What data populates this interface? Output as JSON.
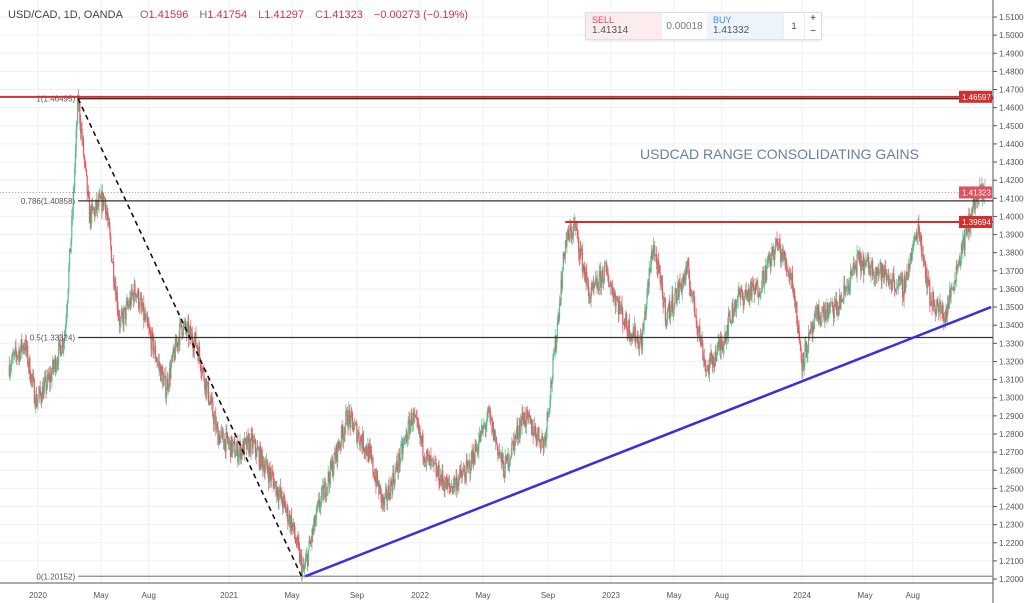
{
  "header": {
    "title": "USD/CAD, 1D, OANDA",
    "o_label": "O",
    "o": "1.41596",
    "h_label": "H",
    "h": "1.41754",
    "l_label": "L",
    "l": "1.41297",
    "c_label": "C",
    "c": "1.41323",
    "change": "−0.00273 (−0.19%)"
  },
  "trade": {
    "sell_label": "SELL",
    "sell_price": "1.41314",
    "spread": "0.00018",
    "buy_label": "BUY",
    "buy_price": "1.41332",
    "qty": "1",
    "plus": "+",
    "minus": "−"
  },
  "annotation": "USDCAD RANGE CONSOLIDATING GAINS",
  "colors": {
    "up": "#53b987",
    "down": "#eb4d5c",
    "resistance": "#d32f2f",
    "trendline": "#3b2ee0",
    "fib": "#555555"
  },
  "chart_data": {
    "type": "candlestick",
    "title": "USD/CAD, 1D, OANDA",
    "ylim": [
      1.195,
      1.512
    ],
    "y_ticks": [
      "1.20000",
      "1.21000",
      "1.22000",
      "1.23000",
      "1.24000",
      "1.25000",
      "1.26000",
      "1.27000",
      "1.28000",
      "1.29000",
      "1.30000",
      "1.31000",
      "1.32000",
      "1.33000",
      "1.34000",
      "1.35000",
      "1.36000",
      "1.37000",
      "1.38000",
      "1.39000",
      "1.40000",
      "1.41000",
      "1.42000",
      "1.43000",
      "1.44000",
      "1.45000",
      "1.46000",
      "1.47000",
      "1.48000",
      "1.49000",
      "1.50000",
      "1.51000"
    ],
    "x_ticks": [
      "2020",
      "May",
      "Aug",
      "2021",
      "May",
      "Sep",
      "2022",
      "May",
      "Sep",
      "2023",
      "May",
      "Aug",
      "2024",
      "May",
      "Aug"
    ],
    "x_tick_dates": [
      2020.0,
      2020.33,
      2020.58,
      2021.0,
      2021.33,
      2021.67,
      2022.0,
      2022.33,
      2022.67,
      2023.0,
      2023.33,
      2023.58,
      2024.0,
      2024.33,
      2024.58
    ],
    "price_path": [
      [
        2019.85,
        1.318
      ],
      [
        2019.93,
        1.33
      ],
      [
        2019.99,
        1.298
      ],
      [
        2020.06,
        1.31
      ],
      [
        2020.14,
        1.335
      ],
      [
        2020.18,
        1.4
      ],
      [
        2020.21,
        1.465
      ],
      [
        2020.27,
        1.4
      ],
      [
        2020.35,
        1.41
      ],
      [
        2020.43,
        1.34
      ],
      [
        2020.51,
        1.36
      ],
      [
        2020.67,
        1.305
      ],
      [
        2020.75,
        1.34
      ],
      [
        2020.83,
        1.33
      ],
      [
        2020.94,
        1.28
      ],
      [
        2021.04,
        1.27
      ],
      [
        2021.12,
        1.275
      ],
      [
        2021.23,
        1.255
      ],
      [
        2021.33,
        1.23
      ],
      [
        2021.39,
        1.203
      ],
      [
        2021.47,
        1.24
      ],
      [
        2021.55,
        1.265
      ],
      [
        2021.62,
        1.29
      ],
      [
        2021.73,
        1.27
      ],
      [
        2021.81,
        1.24
      ],
      [
        2021.89,
        1.265
      ],
      [
        2021.96,
        1.29
      ],
      [
        2022.04,
        1.265
      ],
      [
        2022.15,
        1.25
      ],
      [
        2022.25,
        1.26
      ],
      [
        2022.36,
        1.29
      ],
      [
        2022.44,
        1.26
      ],
      [
        2022.54,
        1.29
      ],
      [
        2022.65,
        1.275
      ],
      [
        2022.7,
        1.32
      ],
      [
        2022.76,
        1.385
      ],
      [
        2022.81,
        1.395
      ],
      [
        2022.89,
        1.355
      ],
      [
        2022.97,
        1.37
      ],
      [
        2023.08,
        1.34
      ],
      [
        2023.16,
        1.33
      ],
      [
        2023.22,
        1.385
      ],
      [
        2023.29,
        1.345
      ],
      [
        2023.4,
        1.37
      ],
      [
        2023.5,
        1.315
      ],
      [
        2023.58,
        1.33
      ],
      [
        2023.66,
        1.355
      ],
      [
        2023.77,
        1.36
      ],
      [
        2023.87,
        1.385
      ],
      [
        2023.95,
        1.365
      ],
      [
        2024.0,
        1.32
      ],
      [
        2024.08,
        1.345
      ],
      [
        2024.19,
        1.35
      ],
      [
        2024.29,
        1.375
      ],
      [
        2024.4,
        1.37
      ],
      [
        2024.53,
        1.36
      ],
      [
        2024.61,
        1.395
      ],
      [
        2024.67,
        1.355
      ],
      [
        2024.75,
        1.345
      ],
      [
        2024.83,
        1.38
      ],
      [
        2024.91,
        1.41
      ],
      [
        2024.96,
        1.413
      ]
    ],
    "levels": [
      {
        "name": "resistance-high",
        "price": 1.46597,
        "label": "1.46597",
        "from": 2019.8
      },
      {
        "name": "resistance-mid",
        "price": 1.39694,
        "label": "1.39694",
        "from": 2022.76
      },
      {
        "name": "current-price",
        "price": 1.41323,
        "label": "1.41323",
        "from": 2019.8
      }
    ],
    "fib_levels": [
      {
        "ratio": "1",
        "price": 1.46495,
        "label": "1(1.46495)"
      },
      {
        "ratio": "0.786",
        "price": 1.40858,
        "label": "0.786(1.40858)"
      },
      {
        "ratio": "0.5",
        "price": 1.33324,
        "label": "0.5(1.33324)"
      },
      {
        "ratio": "0",
        "price": 1.20152,
        "label": "0(1.20152)"
      }
    ],
    "fib_start": 2020.21,
    "dashed_line": [
      [
        2020.21,
        1.46495
      ],
      [
        2021.38,
        1.20152
      ]
    ],
    "trendline": [
      [
        2021.4,
        1.20152
      ],
      [
        2024.99,
        1.35
      ]
    ]
  }
}
